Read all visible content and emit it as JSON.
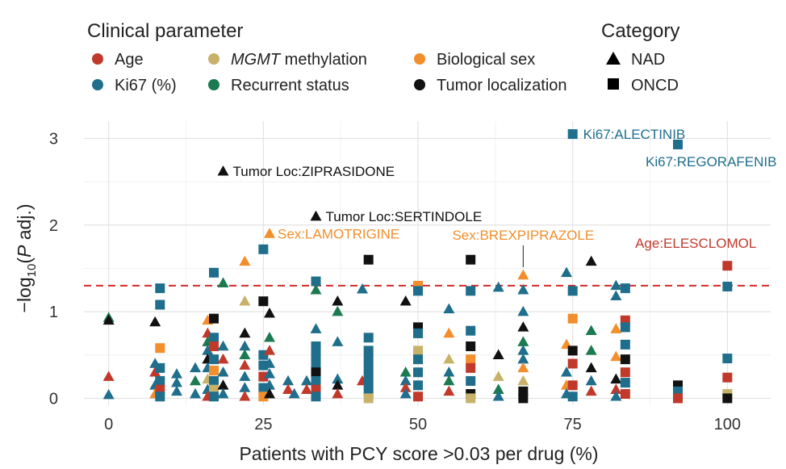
{
  "chart_data": {
    "type": "scatter",
    "xlabel": "Patients with PCY score >0.03 per drug (%)",
    "ylabel": "-log10(P adj.)",
    "xlim": [
      -4,
      107
    ],
    "ylim": [
      -0.08,
      3.2
    ],
    "xticks": [
      0,
      25,
      50,
      75,
      100
    ],
    "yticks": [
      0,
      1,
      2,
      3
    ],
    "threshold": 1.3,
    "legend": {
      "param_title": "Clinical parameter",
      "params": [
        {
          "key": "age",
          "label": "Age",
          "color": "#c0392b"
        },
        {
          "key": "mgmt",
          "label": "methylation",
          "label_prefix": "MGMT",
          "color": "#c8b26a"
        },
        {
          "key": "sex",
          "label": "Biological sex",
          "color": "#f28e2b"
        },
        {
          "key": "ki67",
          "label": "Ki67 (%)",
          "color": "#1f6e8c"
        },
        {
          "key": "rec",
          "label": "Recurrent status",
          "color": "#1b7a50"
        },
        {
          "key": "loc",
          "label": "Tumor localization",
          "color": "#111111"
        }
      ],
      "cat_title": "Category",
      "cats": [
        {
          "key": "NAD",
          "label": "NAD",
          "shape": "triangle"
        },
        {
          "key": "ONCD",
          "label": "ONCD",
          "shape": "square"
        }
      ]
    },
    "annotations": [
      {
        "text": "Ki67:ALECTINIB",
        "param": "ki67",
        "cat": "ONCD",
        "x": 75,
        "y": 3.05
      },
      {
        "text": "Ki67:REGORAFENIB",
        "param": "ki67",
        "cat": "ONCD",
        "x": 92,
        "y": 2.93
      },
      {
        "text": "Tumor Loc:ZIPRASIDONE",
        "param": "loc",
        "cat": "NAD",
        "x": 18.5,
        "y": 2.62
      },
      {
        "text": "Tumor Loc:SERTINDOLE",
        "param": "loc",
        "cat": "NAD",
        "x": 33.5,
        "y": 2.1
      },
      {
        "text": "Sex:LAMOTRIGINE",
        "param": "sex",
        "cat": "NAD",
        "x": 26,
        "y": 1.9
      },
      {
        "text": "Sex:BREXPIPRAZOLE",
        "param": "sex",
        "cat": "NAD",
        "x": 67,
        "y": 1.42
      },
      {
        "text": "Age:ELESCLOMOL",
        "param": "age",
        "cat": "ONCD",
        "x": 100,
        "y": 1.53
      }
    ],
    "points": [
      {
        "x": 0,
        "y": 0.93,
        "p": "rec",
        "c": "NAD"
      },
      {
        "x": 0,
        "y": 0.9,
        "p": "loc",
        "c": "NAD"
      },
      {
        "x": 0,
        "y": 0.25,
        "p": "age",
        "c": "NAD"
      },
      {
        "x": 0,
        "y": 0.04,
        "p": "ki67",
        "c": "NAD"
      },
      {
        "x": 7.5,
        "y": 0.88,
        "p": "loc",
        "c": "NAD"
      },
      {
        "x": 7.5,
        "y": 0.4,
        "p": "ki67",
        "c": "NAD"
      },
      {
        "x": 7.5,
        "y": 0.3,
        "p": "age",
        "c": "NAD"
      },
      {
        "x": 7.5,
        "y": 0.15,
        "p": "ki67",
        "c": "NAD"
      },
      {
        "x": 7.5,
        "y": 0.05,
        "p": "sex",
        "c": "NAD"
      },
      {
        "x": 8.3,
        "y": 1.27,
        "p": "ki67",
        "c": "ONCD"
      },
      {
        "x": 8.3,
        "y": 1.08,
        "p": "ki67",
        "c": "ONCD"
      },
      {
        "x": 8.3,
        "y": 0.58,
        "p": "sex",
        "c": "ONCD"
      },
      {
        "x": 8.3,
        "y": 0.35,
        "p": "ki67",
        "c": "ONCD"
      },
      {
        "x": 8.3,
        "y": 0.2,
        "p": "ki67",
        "c": "ONCD"
      },
      {
        "x": 8.3,
        "y": 0.1,
        "p": "age",
        "c": "ONCD"
      },
      {
        "x": 8.3,
        "y": 0.02,
        "p": "ki67",
        "c": "ONCD"
      },
      {
        "x": 11,
        "y": 0.28,
        "p": "ki67",
        "c": "NAD"
      },
      {
        "x": 11,
        "y": 0.18,
        "p": "ki67",
        "c": "NAD"
      },
      {
        "x": 11,
        "y": 0.08,
        "p": "ki67",
        "c": "NAD"
      },
      {
        "x": 14,
        "y": 0.35,
        "p": "ki67",
        "c": "NAD"
      },
      {
        "x": 14,
        "y": 0.2,
        "p": "rec",
        "c": "NAD"
      },
      {
        "x": 14,
        "y": 0.05,
        "p": "ki67",
        "c": "NAD"
      },
      {
        "x": 16,
        "y": 0.9,
        "p": "sex",
        "c": "NAD"
      },
      {
        "x": 16,
        "y": 0.75,
        "p": "age",
        "c": "NAD"
      },
      {
        "x": 16,
        "y": 0.65,
        "p": "rec",
        "c": "NAD"
      },
      {
        "x": 16,
        "y": 0.55,
        "p": "ki67",
        "c": "NAD"
      },
      {
        "x": 16,
        "y": 0.45,
        "p": "loc",
        "c": "NAD"
      },
      {
        "x": 16,
        "y": 0.35,
        "p": "ki67",
        "c": "NAD"
      },
      {
        "x": 16,
        "y": 0.22,
        "p": "mgmt",
        "c": "NAD"
      },
      {
        "x": 16,
        "y": 0.1,
        "p": "ki67",
        "c": "NAD"
      },
      {
        "x": 16,
        "y": 0.02,
        "p": "age",
        "c": "NAD"
      },
      {
        "x": 17,
        "y": 1.45,
        "p": "ki67",
        "c": "ONCD"
      },
      {
        "x": 17,
        "y": 0.92,
        "p": "loc",
        "c": "ONCD"
      },
      {
        "x": 17,
        "y": 0.7,
        "p": "ki67",
        "c": "ONCD"
      },
      {
        "x": 17,
        "y": 0.6,
        "p": "age",
        "c": "ONCD"
      },
      {
        "x": 17,
        "y": 0.45,
        "p": "ki67",
        "c": "ONCD"
      },
      {
        "x": 17,
        "y": 0.32,
        "p": "sex",
        "c": "ONCD"
      },
      {
        "x": 17,
        "y": 0.2,
        "p": "ki67",
        "c": "ONCD"
      },
      {
        "x": 17,
        "y": 0.1,
        "p": "mgmt",
        "c": "ONCD"
      },
      {
        "x": 17,
        "y": 0.02,
        "p": "ki67",
        "c": "ONCD"
      },
      {
        "x": 18.5,
        "y": 0.6,
        "p": "ki67",
        "c": "NAD"
      },
      {
        "x": 18.5,
        "y": 0.45,
        "p": "age",
        "c": "NAD"
      },
      {
        "x": 18.5,
        "y": 0.3,
        "p": "ki67",
        "c": "NAD"
      },
      {
        "x": 18.5,
        "y": 0.15,
        "p": "loc",
        "c": "NAD"
      },
      {
        "x": 18.5,
        "y": 0.05,
        "p": "ki67",
        "c": "NAD"
      },
      {
        "x": 22,
        "y": 1.58,
        "p": "sex",
        "c": "NAD"
      },
      {
        "x": 22,
        "y": 1.12,
        "p": "mgmt",
        "c": "NAD"
      },
      {
        "x": 22,
        "y": 0.75,
        "p": "loc",
        "c": "NAD"
      },
      {
        "x": 22,
        "y": 0.6,
        "p": "ki67",
        "c": "NAD"
      },
      {
        "x": 22,
        "y": 0.5,
        "p": "rec",
        "c": "NAD"
      },
      {
        "x": 22,
        "y": 0.38,
        "p": "age",
        "c": "NAD"
      },
      {
        "x": 22,
        "y": 0.25,
        "p": "ki67",
        "c": "NAD"
      },
      {
        "x": 22,
        "y": 0.12,
        "p": "ki67",
        "c": "NAD"
      },
      {
        "x": 22,
        "y": 0.02,
        "p": "age",
        "c": "NAD"
      },
      {
        "x": 18.5,
        "y": 1.33,
        "p": "rec",
        "c": "NAD"
      },
      {
        "x": 25,
        "y": 1.72,
        "p": "ki67",
        "c": "ONCD"
      },
      {
        "x": 25,
        "y": 1.12,
        "p": "loc",
        "c": "ONCD"
      },
      {
        "x": 25,
        "y": 0.5,
        "p": "ki67",
        "c": "ONCD"
      },
      {
        "x": 25,
        "y": 0.38,
        "p": "ki67",
        "c": "ONCD"
      },
      {
        "x": 25,
        "y": 0.25,
        "p": "age",
        "c": "ONCD"
      },
      {
        "x": 25,
        "y": 0.12,
        "p": "ki67",
        "c": "ONCD"
      },
      {
        "x": 25,
        "y": 0.02,
        "p": "sex",
        "c": "ONCD"
      },
      {
        "x": 26,
        "y": 0.98,
        "p": "loc",
        "c": "NAD"
      },
      {
        "x": 26,
        "y": 0.7,
        "p": "rec",
        "c": "NAD"
      },
      {
        "x": 26,
        "y": 0.55,
        "p": "age",
        "c": "NAD"
      },
      {
        "x": 26,
        "y": 0.4,
        "p": "ki67",
        "c": "NAD"
      },
      {
        "x": 26,
        "y": 0.28,
        "p": "ki67",
        "c": "NAD"
      },
      {
        "x": 26,
        "y": 0.15,
        "p": "ki67",
        "c": "NAD"
      },
      {
        "x": 26,
        "y": 0.05,
        "p": "loc",
        "c": "NAD"
      },
      {
        "x": 29,
        "y": 0.2,
        "p": "ki67",
        "c": "NAD"
      },
      {
        "x": 29,
        "y": 0.1,
        "p": "age",
        "c": "NAD"
      },
      {
        "x": 30,
        "y": 0.05,
        "p": "ki67",
        "c": "NAD"
      },
      {
        "x": 32,
        "y": 0.2,
        "p": "ki67",
        "c": "NAD"
      },
      {
        "x": 32,
        "y": 0.1,
        "p": "age",
        "c": "NAD"
      },
      {
        "x": 33.5,
        "y": 1.35,
        "p": "ki67",
        "c": "ONCD"
      },
      {
        "x": 33.5,
        "y": 1.25,
        "p": "rec",
        "c": "NAD"
      },
      {
        "x": 33.5,
        "y": 0.8,
        "p": "ki67",
        "c": "NAD"
      },
      {
        "x": 33.5,
        "y": 0.6,
        "p": "ki67",
        "c": "ONCD"
      },
      {
        "x": 33.5,
        "y": 0.5,
        "p": "ki67",
        "c": "ONCD"
      },
      {
        "x": 33.5,
        "y": 0.4,
        "p": "ki67",
        "c": "ONCD"
      },
      {
        "x": 33.5,
        "y": 0.3,
        "p": "loc",
        "c": "ONCD"
      },
      {
        "x": 33.5,
        "y": 0.2,
        "p": "ki67",
        "c": "ONCD"
      },
      {
        "x": 33.5,
        "y": 0.1,
        "p": "age",
        "c": "ONCD"
      },
      {
        "x": 33.5,
        "y": 0.02,
        "p": "ki67",
        "c": "ONCD"
      },
      {
        "x": 37,
        "y": 1.12,
        "p": "loc",
        "c": "NAD"
      },
      {
        "x": 37,
        "y": 1.0,
        "p": "rec",
        "c": "NAD"
      },
      {
        "x": 37,
        "y": 0.65,
        "p": "ki67",
        "c": "NAD"
      },
      {
        "x": 37,
        "y": 0.22,
        "p": "ki67",
        "c": "NAD"
      },
      {
        "x": 37,
        "y": 0.15,
        "p": "loc",
        "c": "NAD"
      },
      {
        "x": 37,
        "y": 0.05,
        "p": "age",
        "c": "NAD"
      },
      {
        "x": 41,
        "y": 0.2,
        "p": "age",
        "c": "NAD"
      },
      {
        "x": 42,
        "y": 1.6,
        "p": "loc",
        "c": "ONCD"
      },
      {
        "x": 42,
        "y": 0.7,
        "p": "ki67",
        "c": "ONCD"
      },
      {
        "x": 42,
        "y": 0.55,
        "p": "ki67",
        "c": "ONCD"
      },
      {
        "x": 42,
        "y": 0.45,
        "p": "ki67",
        "c": "ONCD"
      },
      {
        "x": 42,
        "y": 0.35,
        "p": "ki67",
        "c": "ONCD"
      },
      {
        "x": 42,
        "y": 0.25,
        "p": "ki67",
        "c": "ONCD"
      },
      {
        "x": 42,
        "y": 0.15,
        "p": "ki67",
        "c": "ONCD"
      },
      {
        "x": 42,
        "y": 0.05,
        "p": "ki67",
        "c": "ONCD"
      },
      {
        "x": 42,
        "y": 0.0,
        "p": "mgmt",
        "c": "ONCD"
      },
      {
        "x": 41,
        "y": 1.26,
        "p": "ki67",
        "c": "NAD"
      },
      {
        "x": 48,
        "y": 1.12,
        "p": "loc",
        "c": "NAD"
      },
      {
        "x": 48,
        "y": 0.3,
        "p": "rec",
        "c": "NAD"
      },
      {
        "x": 48,
        "y": 0.2,
        "p": "ki67",
        "c": "NAD"
      },
      {
        "x": 48,
        "y": 0.12,
        "p": "age",
        "c": "NAD"
      },
      {
        "x": 48,
        "y": 0.05,
        "p": "ki67",
        "c": "NAD"
      },
      {
        "x": 50,
        "y": 1.3,
        "p": "sex",
        "c": "ONCD"
      },
      {
        "x": 50,
        "y": 1.24,
        "p": "ki67",
        "c": "ONCD"
      },
      {
        "x": 50,
        "y": 0.82,
        "p": "loc",
        "c": "ONCD"
      },
      {
        "x": 50,
        "y": 0.75,
        "p": "ki67",
        "c": "ONCD"
      },
      {
        "x": 50,
        "y": 0.55,
        "p": "mgmt",
        "c": "ONCD"
      },
      {
        "x": 50,
        "y": 0.45,
        "p": "ki67",
        "c": "ONCD"
      },
      {
        "x": 50,
        "y": 0.3,
        "p": "ki67",
        "c": "ONCD"
      },
      {
        "x": 50,
        "y": 0.15,
        "p": "ki67",
        "c": "ONCD"
      },
      {
        "x": 50,
        "y": 0.02,
        "p": "age",
        "c": "ONCD"
      },
      {
        "x": 55,
        "y": 1.03,
        "p": "ki67",
        "c": "NAD"
      },
      {
        "x": 55,
        "y": 0.75,
        "p": "sex",
        "c": "NAD"
      },
      {
        "x": 55,
        "y": 0.45,
        "p": "mgmt",
        "c": "NAD"
      },
      {
        "x": 55,
        "y": 0.3,
        "p": "ki67",
        "c": "NAD"
      },
      {
        "x": 55,
        "y": 0.2,
        "p": "rec",
        "c": "NAD"
      },
      {
        "x": 55,
        "y": 0.08,
        "p": "age",
        "c": "NAD"
      },
      {
        "x": 58.5,
        "y": 1.6,
        "p": "loc",
        "c": "ONCD"
      },
      {
        "x": 58.5,
        "y": 1.24,
        "p": "ki67",
        "c": "ONCD"
      },
      {
        "x": 58.5,
        "y": 0.78,
        "p": "ki67",
        "c": "ONCD"
      },
      {
        "x": 58.5,
        "y": 0.6,
        "p": "loc",
        "c": "ONCD"
      },
      {
        "x": 58.5,
        "y": 0.45,
        "p": "sex",
        "c": "ONCD"
      },
      {
        "x": 58.5,
        "y": 0.35,
        "p": "age",
        "c": "ONCD"
      },
      {
        "x": 58.5,
        "y": 0.2,
        "p": "ki67",
        "c": "ONCD"
      },
      {
        "x": 58.5,
        "y": 0.05,
        "p": "loc",
        "c": "ONCD"
      },
      {
        "x": 58.5,
        "y": 0.0,
        "p": "mgmt",
        "c": "ONCD"
      },
      {
        "x": 63,
        "y": 1.28,
        "p": "ki67",
        "c": "NAD"
      },
      {
        "x": 63,
        "y": 0.5,
        "p": "loc",
        "c": "NAD"
      },
      {
        "x": 63,
        "y": 0.25,
        "p": "mgmt",
        "c": "NAD"
      },
      {
        "x": 63,
        "y": 0.1,
        "p": "rec",
        "c": "NAD"
      },
      {
        "x": 63,
        "y": 0.02,
        "p": "ki67",
        "c": "NAD"
      },
      {
        "x": 67,
        "y": 1.25,
        "p": "ki67",
        "c": "NAD"
      },
      {
        "x": 67,
        "y": 1.0,
        "p": "ki67",
        "c": "NAD"
      },
      {
        "x": 67,
        "y": 0.82,
        "p": "loc",
        "c": "NAD"
      },
      {
        "x": 67,
        "y": 0.65,
        "p": "rec",
        "c": "NAD"
      },
      {
        "x": 67,
        "y": 0.55,
        "p": "ki67",
        "c": "NAD"
      },
      {
        "x": 67,
        "y": 0.45,
        "p": "ki67",
        "c": "NAD"
      },
      {
        "x": 67,
        "y": 0.35,
        "p": "sex",
        "c": "NAD"
      },
      {
        "x": 67,
        "y": 0.2,
        "p": "mgmt",
        "c": "NAD"
      },
      {
        "x": 67,
        "y": 0.08,
        "p": "loc",
        "c": "ONCD"
      },
      {
        "x": 67,
        "y": 0.0,
        "p": "loc",
        "c": "ONCD"
      },
      {
        "x": 74,
        "y": 1.45,
        "p": "ki67",
        "c": "NAD"
      },
      {
        "x": 74,
        "y": 0.62,
        "p": "sex",
        "c": "NAD"
      },
      {
        "x": 74,
        "y": 0.3,
        "p": "ki67",
        "c": "NAD"
      },
      {
        "x": 74,
        "y": 0.15,
        "p": "sex",
        "c": "NAD"
      },
      {
        "x": 74,
        "y": 0.05,
        "p": "ki67",
        "c": "NAD"
      },
      {
        "x": 75,
        "y": 1.24,
        "p": "ki67",
        "c": "ONCD"
      },
      {
        "x": 75,
        "y": 0.92,
        "p": "sex",
        "c": "ONCD"
      },
      {
        "x": 75,
        "y": 0.55,
        "p": "loc",
        "c": "ONCD"
      },
      {
        "x": 75,
        "y": 0.4,
        "p": "age",
        "c": "ONCD"
      },
      {
        "x": 75,
        "y": 0.15,
        "p": "age",
        "c": "ONCD"
      },
      {
        "x": 75,
        "y": 0.02,
        "p": "ki67",
        "c": "ONCD"
      },
      {
        "x": 78,
        "y": 1.58,
        "p": "loc",
        "c": "NAD"
      },
      {
        "x": 78,
        "y": 0.78,
        "p": "rec",
        "c": "NAD"
      },
      {
        "x": 78,
        "y": 0.55,
        "p": "rec",
        "c": "NAD"
      },
      {
        "x": 78,
        "y": 0.35,
        "p": "loc",
        "c": "NAD"
      },
      {
        "x": 78,
        "y": 0.2,
        "p": "ki67",
        "c": "NAD"
      },
      {
        "x": 78,
        "y": 0.08,
        "p": "age",
        "c": "NAD"
      },
      {
        "x": 82,
        "y": 1.3,
        "p": "ki67",
        "c": "NAD"
      },
      {
        "x": 82,
        "y": 1.18,
        "p": "ki67",
        "c": "NAD"
      },
      {
        "x": 82,
        "y": 0.8,
        "p": "sex",
        "c": "NAD"
      },
      {
        "x": 82,
        "y": 0.48,
        "p": "sex",
        "c": "NAD"
      },
      {
        "x": 82,
        "y": 0.22,
        "p": "loc",
        "c": "NAD"
      },
      {
        "x": 82,
        "y": 0.1,
        "p": "age",
        "c": "NAD"
      },
      {
        "x": 82,
        "y": 0.02,
        "p": "ki67",
        "c": "NAD"
      },
      {
        "x": 83.5,
        "y": 1.27,
        "p": "ki67",
        "c": "ONCD"
      },
      {
        "x": 83.5,
        "y": 0.9,
        "p": "age",
        "c": "ONCD"
      },
      {
        "x": 83.5,
        "y": 0.82,
        "p": "ki67",
        "c": "ONCD"
      },
      {
        "x": 83.5,
        "y": 0.62,
        "p": "ki67",
        "c": "ONCD"
      },
      {
        "x": 83.5,
        "y": 0.45,
        "p": "loc",
        "c": "ONCD"
      },
      {
        "x": 83.5,
        "y": 0.3,
        "p": "age",
        "c": "ONCD"
      },
      {
        "x": 83.5,
        "y": 0.18,
        "p": "ki67",
        "c": "ONCD"
      },
      {
        "x": 83.5,
        "y": 0.05,
        "p": "age",
        "c": "ONCD"
      },
      {
        "x": 92,
        "y": 0.15,
        "p": "loc",
        "c": "ONCD"
      },
      {
        "x": 92,
        "y": 0.08,
        "p": "ki67",
        "c": "ONCD"
      },
      {
        "x": 92,
        "y": 0.0,
        "p": "age",
        "c": "ONCD"
      },
      {
        "x": 100,
        "y": 1.29,
        "p": "ki67",
        "c": "ONCD"
      },
      {
        "x": 100,
        "y": 0.46,
        "p": "ki67",
        "c": "ONCD"
      },
      {
        "x": 100,
        "y": 0.24,
        "p": "age",
        "c": "ONCD"
      },
      {
        "x": 100,
        "y": 0.05,
        "p": "mgmt",
        "c": "ONCD"
      },
      {
        "x": 100,
        "y": 0.0,
        "p": "loc",
        "c": "ONCD"
      }
    ]
  }
}
